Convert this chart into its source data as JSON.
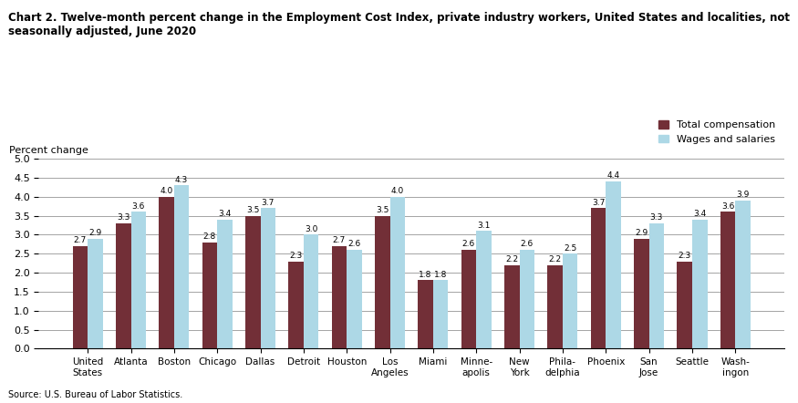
{
  "title": "Chart 2. Twelve-month percent change in the Employment Cost Index, private industry workers, United States and localities, not\nseasonally adjusted, June 2020",
  "ylabel": "Percent change",
  "ylim": [
    0,
    5.0
  ],
  "yticks": [
    0.0,
    0.5,
    1.0,
    1.5,
    2.0,
    2.5,
    3.0,
    3.5,
    4.0,
    4.5,
    5.0
  ],
  "categories": [
    "United\nStates",
    "Atlanta",
    "Boston",
    "Chicago",
    "Dallas",
    "Detroit",
    "Houston",
    "Los\nAngeles",
    "Miami",
    "Minne-\napolis",
    "New\nYork",
    "Phila-\ndelphia",
    "Phoenix",
    "San\nJose",
    "Seattle",
    "Wash-\ningon"
  ],
  "total_compensation": [
    2.7,
    3.3,
    4.0,
    2.8,
    3.5,
    2.3,
    2.7,
    3.5,
    1.8,
    2.6,
    2.2,
    2.2,
    3.7,
    2.9,
    2.3,
    3.6
  ],
  "wages_and_salaries": [
    2.9,
    3.6,
    4.3,
    3.4,
    3.7,
    3.0,
    2.6,
    4.0,
    1.8,
    3.1,
    2.6,
    2.5,
    4.4,
    3.3,
    3.4,
    3.9
  ],
  "color_total": "#722F37",
  "color_wages": "#ADD8E6",
  "source": "Source: U.S. Bureau of Labor Statistics.",
  "legend_total": "Total compensation",
  "legend_wages": "Wages and salaries"
}
